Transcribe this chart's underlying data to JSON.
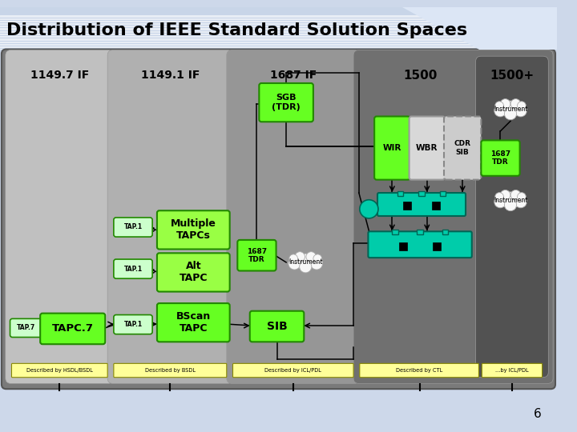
{
  "title": "Distribution of IEEE Standard Solution Spaces",
  "slide_bg": "#cdd8ea",
  "main_bg": "#7a7a7a",
  "col1_bg": "#c0c0c0",
  "col2_bg": "#b0b0b0",
  "col3_bg": "#909090",
  "col45_bg": "#686868",
  "col5_bg": "#4a4a4a",
  "green_bright": "#66ff22",
  "green_light": "#ccffaa",
  "teal": "#00ccaa",
  "yellow": "#ffff99",
  "page_num": "6",
  "col_headers": [
    "1149.7 IF",
    "1149.1 IF",
    "1687 IF",
    "1500",
    "1500+"
  ],
  "desc_labels": [
    "Described by HSDL/BSDL",
    "Described by BSDL",
    "Described by ICL/PDL",
    "Described by CTL",
    "...by ICL/PDL"
  ]
}
